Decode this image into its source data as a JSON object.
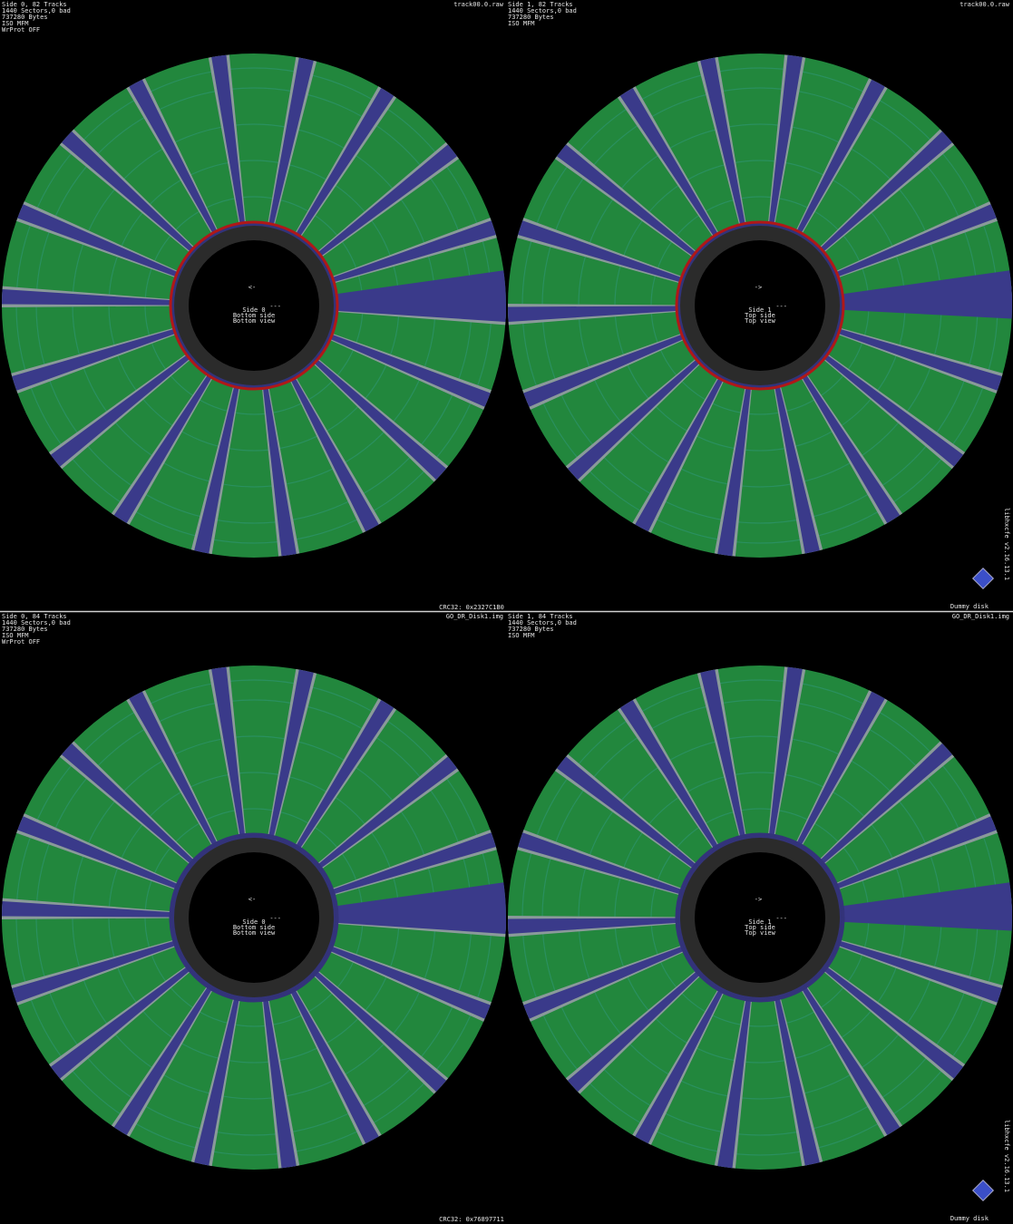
{
  "panels": [
    {
      "info": [
        "Side 0, 82 Tracks",
        "1440 Sectors,0 bad",
        "737280 Bytes",
        "ISO MFM",
        "WrProt OFF"
      ],
      "file": "track00.0.raw",
      "center": [
        "<-",
        "---",
        "Side 0",
        "Bottom side",
        "Bottom view"
      ]
    },
    {
      "info": [
        "Side 1, 82 Tracks",
        "1440 Sectors,0 bad",
        "737280 Bytes",
        "ISO MFM"
      ],
      "file": "track00.0.raw",
      "center": [
        "->",
        "---",
        "Side 1",
        "Top side",
        "Top view"
      ]
    },
    {
      "info": [
        "Side 0, 84 Tracks",
        "1440 Sectors,0 bad",
        "737280 Bytes",
        "ISO MFM",
        "WrProt OFF"
      ],
      "file": "GO_DR_Disk1.img",
      "center": [
        "<-",
        "---",
        "Side 0",
        "Bottom side",
        "Bottom view"
      ]
    },
    {
      "info": [
        "Side 1, 84 Tracks",
        "1440 Sectors,0 bad",
        "737280 Bytes",
        "ISO MFM"
      ],
      "file": "GO_DR_Disk1.img",
      "center": [
        "->",
        "---",
        "Side 1",
        "Top side",
        "Top view"
      ]
    }
  ],
  "crc": [
    "CRC32: 0x2327C1B0",
    "CRC32: 0x76897711"
  ],
  "disk_name": [
    "Dummy disk",
    "Dummy disk"
  ],
  "version": [
    "libhxcfe v2.16.13.1",
    "libhxcfe v2.16.13.1"
  ]
}
